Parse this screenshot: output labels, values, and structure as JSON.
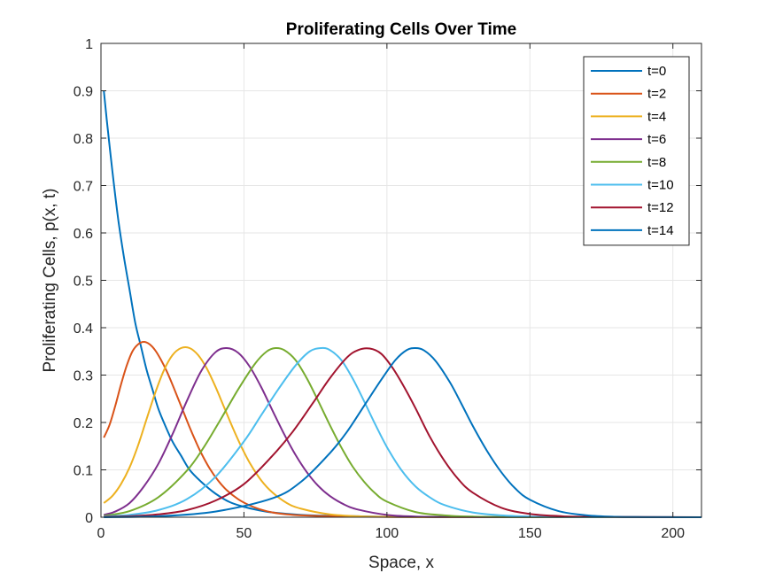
{
  "chart_data": {
    "type": "line",
    "title": "Proliferating Cells Over Time",
    "xlabel": "Space, x",
    "ylabel": "Proliferating Cells, p(x, t)",
    "xlim": [
      0,
      210
    ],
    "ylim": [
      0,
      1
    ],
    "xticks": [
      0,
      50,
      100,
      150,
      200
    ],
    "yticks": [
      0,
      0.1,
      0.2,
      0.3,
      0.4,
      0.5,
      0.6,
      0.7,
      0.8,
      0.9,
      1
    ],
    "grid": true,
    "legend_position": "top-right",
    "series": [
      {
        "name": "t=0",
        "color": "#0072BD",
        "x": [
          1,
          2,
          4,
          6,
          8,
          10,
          12,
          14,
          16,
          18,
          20,
          22,
          25,
          28,
          31,
          35,
          40,
          45,
          50,
          55,
          60,
          70,
          80,
          90,
          100,
          120,
          150,
          210
        ],
        "y": [
          0.9,
          0.84,
          0.73,
          0.63,
          0.55,
          0.48,
          0.41,
          0.36,
          0.31,
          0.27,
          0.23,
          0.2,
          0.16,
          0.13,
          0.1,
          0.075,
          0.05,
          0.032,
          0.022,
          0.015,
          0.01,
          0.005,
          0.003,
          0.002,
          0.001,
          0.0005,
          0.0001,
          0
        ]
      },
      {
        "name": "t=2",
        "color": "#D95319",
        "x": [
          1,
          3,
          5,
          7,
          9,
          11,
          13,
          15,
          17,
          19,
          21,
          23,
          25,
          27,
          29,
          31,
          33,
          35,
          38,
          41,
          44,
          48,
          52,
          56,
          60,
          65,
          70,
          80,
          90,
          100,
          120,
          150,
          210
        ],
        "y": [
          0.168,
          0.195,
          0.235,
          0.28,
          0.32,
          0.35,
          0.365,
          0.37,
          0.365,
          0.352,
          0.332,
          0.308,
          0.28,
          0.25,
          0.22,
          0.19,
          0.162,
          0.136,
          0.103,
          0.077,
          0.057,
          0.038,
          0.025,
          0.016,
          0.01,
          0.006,
          0.004,
          0.002,
          0.001,
          0.0006,
          0.0002,
          0,
          0
        ]
      },
      {
        "name": "t=4",
        "color": "#EDB120",
        "x": [
          1,
          4,
          7,
          10,
          13,
          16,
          19,
          22,
          25,
          28,
          31,
          34,
          37,
          40,
          43,
          46,
          49,
          52,
          56,
          60,
          65,
          70,
          80,
          90,
          100,
          120,
          150,
          210
        ],
        "y": [
          0.03,
          0.045,
          0.07,
          0.105,
          0.152,
          0.208,
          0.263,
          0.31,
          0.342,
          0.357,
          0.357,
          0.342,
          0.314,
          0.276,
          0.233,
          0.19,
          0.15,
          0.115,
          0.078,
          0.052,
          0.03,
          0.018,
          0.006,
          0.002,
          0.0008,
          0.0001,
          0,
          0
        ]
      },
      {
        "name": "t=6",
        "color": "#7E2F8E",
        "x": [
          1,
          5,
          10,
          15,
          20,
          25,
          30,
          35,
          40,
          44,
          48,
          52,
          56,
          60,
          64,
          68,
          72,
          76,
          80,
          85,
          90,
          100,
          110,
          120,
          150,
          210
        ],
        "y": [
          0.005,
          0.012,
          0.03,
          0.065,
          0.112,
          0.175,
          0.245,
          0.308,
          0.348,
          0.357,
          0.347,
          0.318,
          0.275,
          0.225,
          0.176,
          0.132,
          0.095,
          0.066,
          0.045,
          0.027,
          0.016,
          0.005,
          0.0015,
          0.0005,
          0,
          0
        ]
      },
      {
        "name": "t=8",
        "color": "#77AC30",
        "x": [
          1,
          10,
          20,
          30,
          36,
          42,
          48,
          54,
          58,
          61,
          64,
          68,
          72,
          76,
          80,
          84,
          88,
          92,
          96,
          100,
          110,
          120,
          130,
          150,
          210
        ],
        "y": [
          0.003,
          0.013,
          0.042,
          0.098,
          0.148,
          0.208,
          0.27,
          0.325,
          0.35,
          0.357,
          0.353,
          0.332,
          0.293,
          0.245,
          0.195,
          0.148,
          0.107,
          0.075,
          0.05,
          0.033,
          0.011,
          0.004,
          0.0013,
          0.0002,
          0
        ]
      },
      {
        "name": "t=10",
        "color": "#4DBEEE",
        "x": [
          1,
          10,
          20,
          30,
          40,
          50,
          56,
          62,
          68,
          73,
          77,
          80,
          84,
          88,
          92,
          96,
          100,
          105,
          110,
          115,
          120,
          130,
          140,
          150,
          160,
          210
        ],
        "y": [
          0.002,
          0.005,
          0.015,
          0.038,
          0.085,
          0.16,
          0.215,
          0.27,
          0.32,
          0.35,
          0.357,
          0.353,
          0.332,
          0.293,
          0.245,
          0.195,
          0.148,
          0.1,
          0.065,
          0.042,
          0.026,
          0.01,
          0.004,
          0.0015,
          0.0005,
          0
        ]
      },
      {
        "name": "t=12",
        "color": "#A2142F",
        "x": [
          1,
          10,
          20,
          30,
          40,
          50,
          60,
          67,
          74,
          80,
          86,
          90,
          94,
          98,
          102,
          106,
          110,
          115,
          120,
          125,
          130,
          140,
          150,
          160,
          170,
          210
        ],
        "y": [
          0.001,
          0.002,
          0.006,
          0.015,
          0.035,
          0.07,
          0.13,
          0.18,
          0.24,
          0.293,
          0.337,
          0.353,
          0.356,
          0.345,
          0.315,
          0.275,
          0.23,
          0.17,
          0.12,
          0.08,
          0.052,
          0.02,
          0.007,
          0.0025,
          0.001,
          0
        ]
      },
      {
        "name": "t=14",
        "color": "#0072BD",
        "x": [
          1,
          20,
          40,
          60,
          70,
          80,
          86,
          92,
          98,
          103,
          107,
          110,
          113,
          117,
          122,
          126,
          130,
          135,
          140,
          145,
          150,
          160,
          170,
          180,
          190,
          210
        ],
        "y": [
          0,
          0.002,
          0.012,
          0.04,
          0.075,
          0.135,
          0.18,
          0.235,
          0.29,
          0.332,
          0.353,
          0.357,
          0.352,
          0.33,
          0.285,
          0.24,
          0.193,
          0.14,
          0.095,
          0.06,
          0.037,
          0.013,
          0.004,
          0.001,
          0.0003,
          0
        ]
      }
    ]
  }
}
